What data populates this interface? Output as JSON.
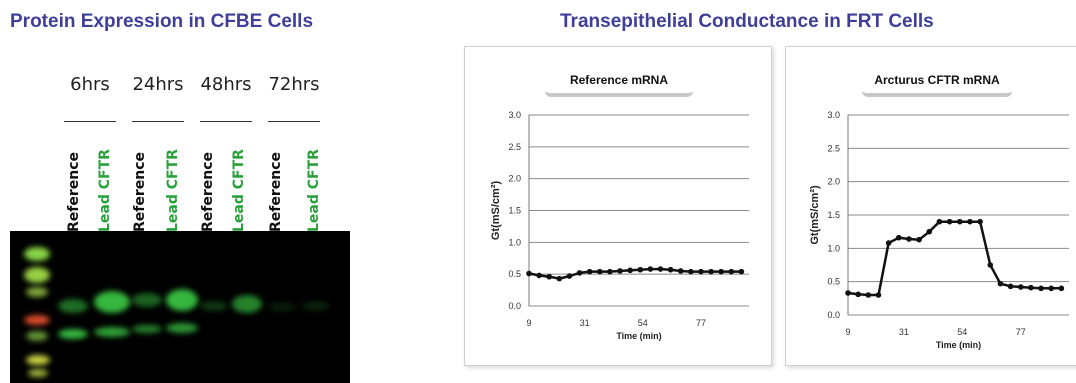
{
  "left_title": "Protein Expression in CFBE Cells",
  "right_title": "Transepithelial Conductance in FRT Cells",
  "western_blot": {
    "time_points": [
      "6hrs",
      "24hrs",
      "48hrs",
      "72hrs"
    ],
    "lane_labels": [
      "Reference",
      "Lead CFTR",
      "Reference",
      "Lead CFTR",
      "Reference",
      "Lead CFTR",
      "Reference",
      "Lead CFTR"
    ],
    "colors": {
      "reference_label": "#111111",
      "lead_label": "#2aa23c",
      "band": "#3fd84a",
      "background": "#000000"
    }
  },
  "chart_data": [
    {
      "type": "line",
      "title": "Reference mRNA",
      "xlabel": "Time (min)",
      "ylabel": "Gt(mS/cm²)",
      "ylim": [
        0,
        3.0
      ],
      "yticks": [
        "0.0",
        "0.5",
        "1.0",
        "1.5",
        "2.0",
        "2.5",
        "3.0"
      ],
      "xticks": [
        "9",
        "31",
        "54",
        "77"
      ],
      "xlim": [
        9,
        96
      ],
      "grid": true,
      "series": [
        {
          "x": [
            9,
            13,
            17,
            21,
            25,
            29,
            33,
            37,
            41,
            45,
            49,
            53,
            57,
            61,
            65,
            69,
            73,
            77,
            81,
            85,
            89,
            93
          ],
          "y": [
            0.51,
            0.48,
            0.46,
            0.43,
            0.47,
            0.52,
            0.54,
            0.54,
            0.54,
            0.55,
            0.56,
            0.57,
            0.58,
            0.58,
            0.57,
            0.55,
            0.54,
            0.54,
            0.54,
            0.54,
            0.54,
            0.54
          ]
        }
      ]
    },
    {
      "type": "line",
      "title": "Arcturus CFTR mRNA",
      "xlabel": "Time (min)",
      "ylabel": "Gt(mS/cm²)",
      "ylim": [
        0,
        3.0
      ],
      "yticks": [
        "0.0",
        "0.5",
        "1.0",
        "1.5",
        "2.0",
        "2.5",
        "3.0"
      ],
      "xticks": [
        "9",
        "31",
        "54",
        "77"
      ],
      "xlim": [
        9,
        96
      ],
      "grid": true,
      "series": [
        {
          "x": [
            9,
            13,
            17,
            21,
            25,
            29,
            33,
            37,
            41,
            45,
            49,
            53,
            57,
            61,
            65,
            69,
            73,
            77,
            81,
            85,
            89,
            93
          ],
          "y": [
            0.33,
            0.31,
            0.3,
            0.3,
            1.08,
            1.16,
            1.14,
            1.13,
            1.25,
            1.4,
            1.4,
            1.4,
            1.4,
            1.4,
            0.75,
            0.47,
            0.43,
            0.42,
            0.41,
            0.4,
            0.4,
            0.4
          ]
        }
      ]
    }
  ]
}
